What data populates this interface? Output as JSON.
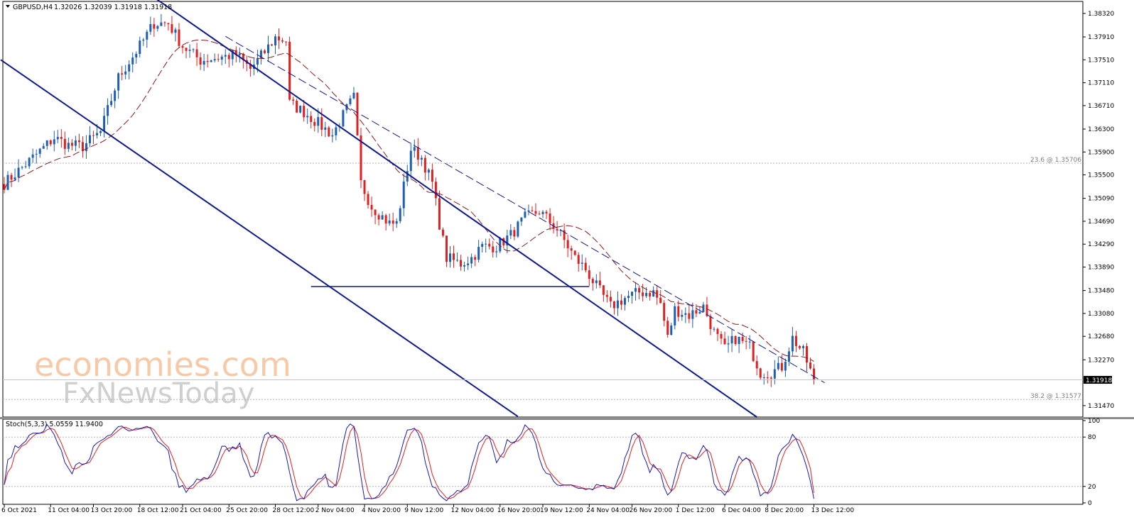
{
  "header": {
    "symbol_label": "GBPUSD,H4",
    "ohlc": "1.32026 1.32039 1.31918 1.31918"
  },
  "stoch_header": "Stoch(5,3,3) 5.0559 11.9400",
  "watermark": {
    "line1": "economies.com",
    "line2": "FxNewsToday"
  },
  "current_price_label": "1.31918",
  "fib_levels": [
    {
      "label": "23.6 @ 1.35706",
      "value": 1.35706
    },
    {
      "label": "38.2 @ 1.31577",
      "value": 1.31577
    }
  ],
  "colors": {
    "bull": "#1f5fb3",
    "bear": "#e02020",
    "ma": "#8b1a1a",
    "channel": "#0f1a8c",
    "stoch_main": "#1a1aa8",
    "stoch_signal": "#e02020",
    "price_line": "#9ed6d6"
  },
  "chart_data": [
    {
      "type": "candlestick",
      "symbol": "GBPUSD",
      "timeframe": "H4",
      "ylim": [
        1.3127,
        1.3853
      ],
      "y_ticks": [
        1.3832,
        1.3791,
        1.3751,
        1.3711,
        1.3671,
        1.363,
        1.359,
        1.355,
        1.3509,
        1.3469,
        1.3429,
        1.3389,
        1.3348,
        1.3308,
        1.3268,
        1.3227,
        1.3147
      ],
      "y_tick_labels": [
        "1.38320",
        "1.37910",
        "1.37510",
        "1.37110",
        "1.36710",
        "1.36300",
        "1.35900",
        "1.35500",
        "1.35090",
        "1.34690",
        "1.34290",
        "1.33890",
        "1.33480",
        "1.33080",
        "1.32680",
        "1.32270",
        "1.31470"
      ],
      "x_labels": [
        "6 Oct 2021",
        "11 Oct 04:00",
        "13 Oct 20:00",
        "18 Oct 12:00",
        "21 Oct 04:00",
        "25 Oct 20:00",
        "28 Oct 12:00",
        "2 Nov 04:00",
        "4 Nov 20:00",
        "9 Nov 12:00",
        "12 Nov 04:00",
        "16 Nov 20:00",
        "19 Nov 12:00",
        "24 Nov 04:00",
        "26 Nov 20:00",
        "1 Dec 12:00",
        "6 Dec 04:00",
        "8 Dec 20:00",
        "13 Dec 12:00"
      ],
      "n_bars": 228,
      "close_anchors": [
        [
          0,
          1.3535
        ],
        [
          8,
          1.358
        ],
        [
          14,
          1.3615
        ],
        [
          18,
          1.3602
        ],
        [
          22,
          1.36
        ],
        [
          27,
          1.3625
        ],
        [
          32,
          1.372
        ],
        [
          38,
          1.3775
        ],
        [
          42,
          1.3815
        ],
        [
          46,
          1.3815
        ],
        [
          50,
          1.3775
        ],
        [
          55,
          1.375
        ],
        [
          60,
          1.3755
        ],
        [
          65,
          1.376
        ],
        [
          69,
          1.3735
        ],
        [
          73,
          1.3765
        ],
        [
          76,
          1.379
        ],
        [
          79,
          1.3785
        ],
        [
          80,
          1.3675
        ],
        [
          84,
          1.366
        ],
        [
          88,
          1.364
        ],
        [
          92,
          1.362
        ],
        [
          96,
          1.3665
        ],
        [
          98,
          1.3685
        ],
        [
          100,
          1.3535
        ],
        [
          103,
          1.3495
        ],
        [
          108,
          1.3465
        ],
        [
          110,
          1.3465
        ],
        [
          114,
          1.3595
        ],
        [
          117,
          1.358
        ],
        [
          120,
          1.3535
        ],
        [
          122,
          1.3465
        ],
        [
          124,
          1.3405
        ],
        [
          128,
          1.3395
        ],
        [
          131,
          1.3405
        ],
        [
          134,
          1.3425
        ],
        [
          138,
          1.3425
        ],
        [
          142,
          1.3445
        ],
        [
          146,
          1.3475
        ],
        [
          150,
          1.3487
        ],
        [
          155,
          1.3455
        ],
        [
          160,
          1.3405
        ],
        [
          163,
          1.3385
        ],
        [
          166,
          1.3355
        ],
        [
          170,
          1.332
        ],
        [
          174,
          1.3335
        ],
        [
          178,
          1.3345
        ],
        [
          182,
          1.3345
        ],
        [
          184,
          1.3325
        ],
        [
          186,
          1.3265
        ],
        [
          188,
          1.3315
        ],
        [
          192,
          1.3305
        ],
        [
          196,
          1.332
        ],
        [
          199,
          1.3275
        ],
        [
          202,
          1.3245
        ],
        [
          205,
          1.3265
        ],
        [
          209,
          1.325
        ],
        [
          212,
          1.3205
        ],
        [
          215,
          1.3205
        ],
        [
          218,
          1.3215
        ],
        [
          221,
          1.3265
        ],
        [
          224,
          1.324
        ],
        [
          227,
          1.3192
        ]
      ],
      "series": [
        {
          "name": "MA",
          "style": "dashed"
        }
      ],
      "trendlines": [
        {
          "from": [
            -1,
            1.3751
          ],
          "to": [
            144,
            1.3128
          ]
        },
        {
          "from": [
            42,
            1.386
          ],
          "to": [
            211,
            1.3127
          ]
        },
        {
          "from": [
            62,
            1.3792
          ],
          "to": [
            230,
            1.3187
          ],
          "style": "dashed"
        },
        {
          "from": [
            86,
            1.3355
          ],
          "to": [
            164,
            1.3355
          ]
        }
      ]
    },
    {
      "type": "line",
      "title": "Stoch(5,3,3)",
      "ylim": [
        0,
        100
      ],
      "y_ticks": [
        100,
        80,
        20,
        0
      ],
      "levels": [
        80,
        20
      ],
      "series": [
        {
          "name": "Main",
          "last": 5.0559
        },
        {
          "name": "Signal",
          "last": 11.94
        }
      ]
    }
  ]
}
